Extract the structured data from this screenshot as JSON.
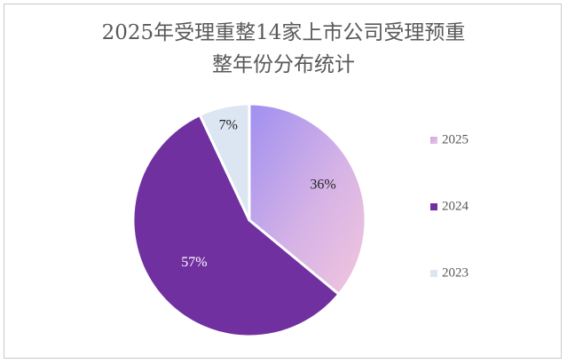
{
  "chart_data": {
    "type": "pie",
    "title_lines": [
      "2025年受理重整14家上市公司受理预重",
      "整年份分布统计"
    ],
    "slices": [
      {
        "name": "2025",
        "value": 36,
        "label": "36%",
        "color": "#d9a8e0"
      },
      {
        "name": "2024",
        "value": 57,
        "label": "57%",
        "color": "#7030a0"
      },
      {
        "name": "2023",
        "value": 7,
        "label": "7%",
        "color": "#dce5f2"
      }
    ],
    "legend": {
      "placement": "right",
      "entries": [
        "2025",
        "2024",
        "2023"
      ]
    }
  }
}
